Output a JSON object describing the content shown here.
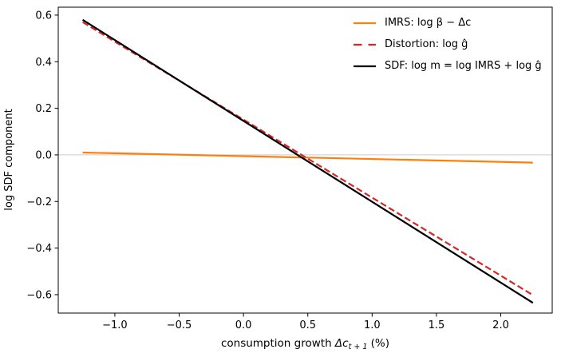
{
  "figure": {
    "background_color": "#ffffff"
  },
  "axes": {
    "ylabel": "log SDF component",
    "xlabel_prefix": "consumption growth ",
    "xlabel_variable": "Δc",
    "xlabel_subscript": "t + 1",
    "xlabel_suffix": " (%)"
  },
  "chart_data": {
    "type": "line",
    "title": "",
    "xlabel": "consumption growth Δc_t+1 (%)",
    "ylabel": "log SDF component",
    "xlim": [
      -1.44,
      2.4
    ],
    "ylim": [
      -0.679,
      0.634
    ],
    "grid": false,
    "legend_position": "upper right",
    "legend_frame": false,
    "zero_line": {
      "y": 0.0,
      "color": "#cccccc"
    },
    "x_ticks": {
      "values": [
        -1.0,
        -0.5,
        0.0,
        0.5,
        1.0,
        1.5,
        2.0
      ],
      "labels": [
        "−1.0",
        "−0.5",
        "0.0",
        "0.5",
        "1.0",
        "1.5",
        "2.0"
      ]
    },
    "y_ticks": {
      "values": [
        0.6,
        0.4,
        0.2,
        0.0,
        -0.2,
        -0.4,
        -0.6
      ],
      "labels": [
        "0.6",
        "0.4",
        "0.2",
        "0.0",
        "−0.2",
        "−0.4",
        "−0.6"
      ]
    },
    "series": [
      {
        "key": "imrs",
        "name": "IMRS: log β − Δc",
        "color": "#ff7f0e",
        "line_style": "solid",
        "line_width": 2.2,
        "x": [
          -1.25,
          2.25
        ],
        "y": [
          0.01,
          -0.033
        ]
      },
      {
        "key": "distortion",
        "name": "Distortion: log ĝ",
        "color": "#d62728",
        "line_style": "dashed",
        "line_width": 2.2,
        "x": [
          -1.25,
          2.25
        ],
        "y": [
          0.57,
          -0.602
        ]
      },
      {
        "key": "sdf",
        "name": "SDF: log m = log IMRS + log ĝ",
        "color": "#000000",
        "line_style": "solid",
        "line_width": 2.2,
        "x": [
          -1.25,
          2.25
        ],
        "y": [
          0.58,
          -0.635
        ]
      }
    ]
  }
}
